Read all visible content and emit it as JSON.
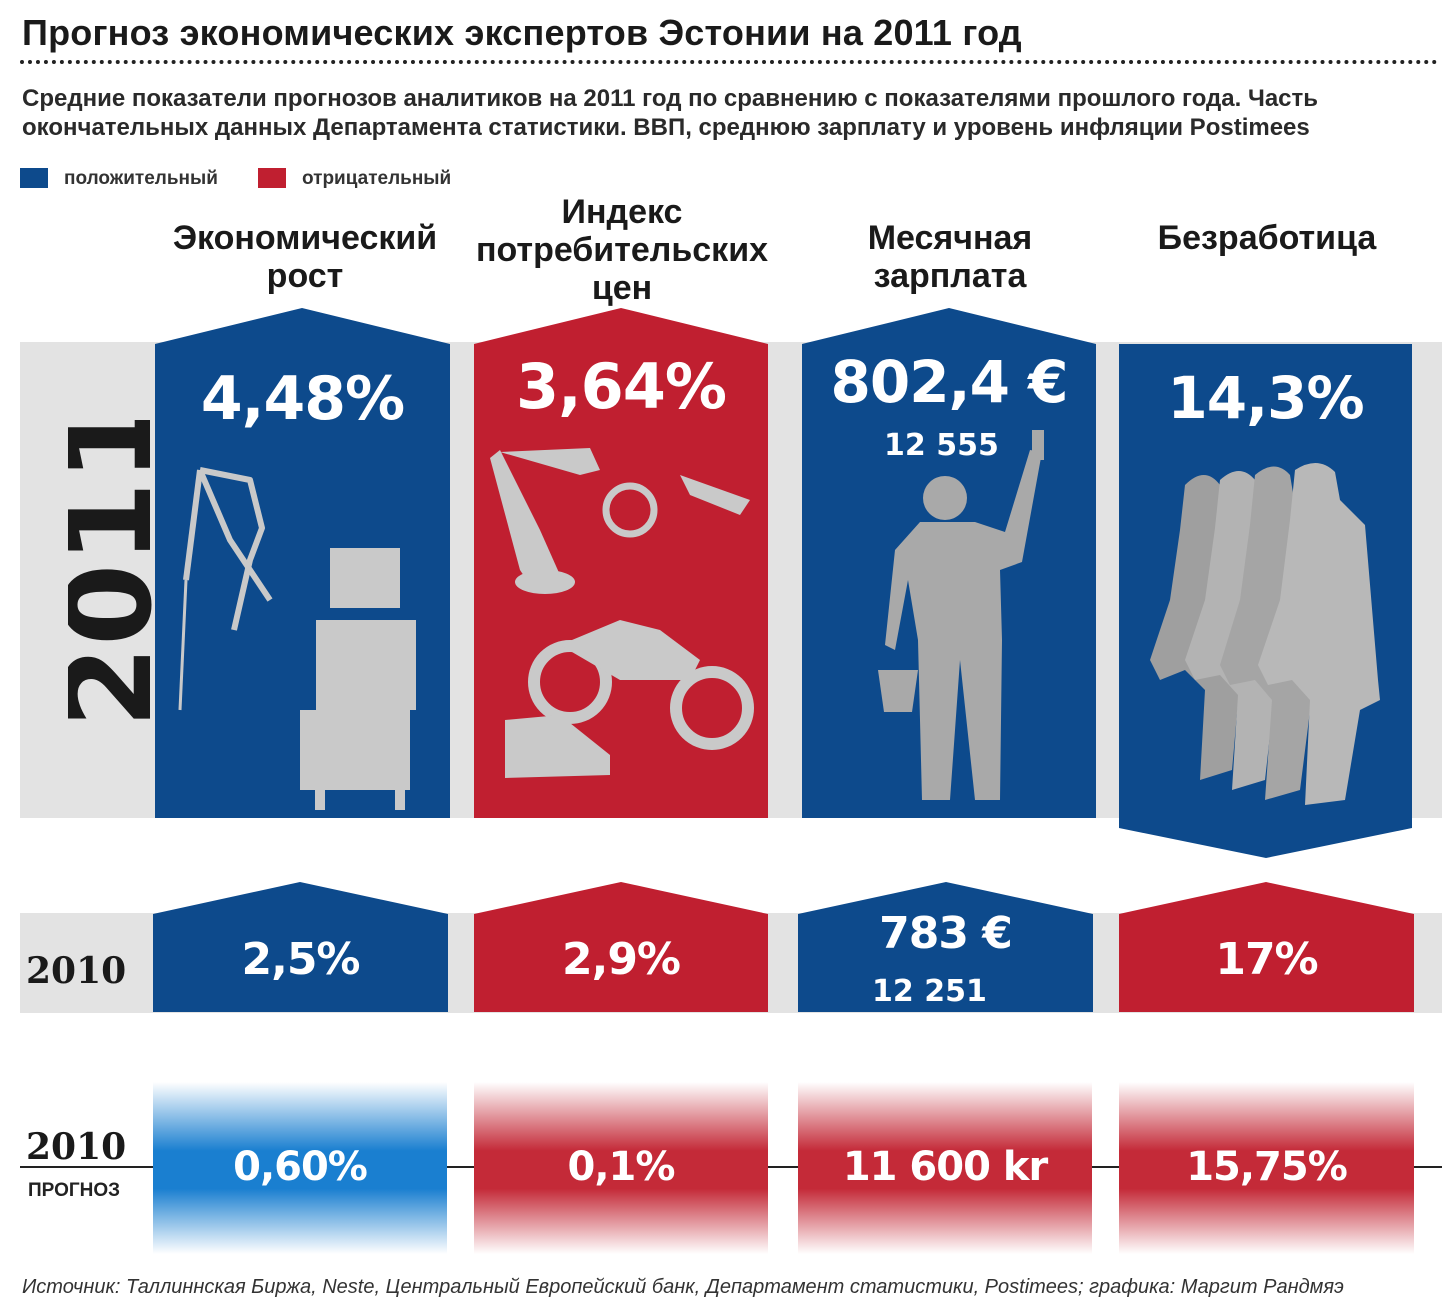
{
  "title": "Прогноз экономических экспертов Эстонии на 2011 год",
  "subtitle_line1": "Средние показатели прогнозов аналитиков на 2011 год по сравнению с показателями прошлого года. Часть",
  "subtitle_line2": "окончательных данных Департамента статистики. ВВП, среднюю зарплату и уровень инфляции Postimees",
  "legend": {
    "positive": {
      "label": "положительный",
      "color": "#0d4a8c"
    },
    "negative": {
      "label": "отрицательный",
      "color": "#c01f30"
    }
  },
  "colors": {
    "band": "#e3e3e3",
    "silhouette": "#a9a9a9",
    "forecast_blue": "#1a7fd0",
    "forecast_red": "#c42a38"
  },
  "columns": [
    {
      "line1": "Экономический",
      "line2": "рост",
      "line3": ""
    },
    {
      "line1": "Индекс",
      "line2": "потребительских",
      "line3": "цен"
    },
    {
      "line1": "Месячная",
      "line2": "зарплата",
      "line3": ""
    },
    {
      "line1": "Безработица",
      "line2": "",
      "line3": ""
    }
  ],
  "rows": {
    "y2011": {
      "label": "2011",
      "cells": [
        {
          "value": "4,48%",
          "sub": "",
          "polarity": "positive",
          "icon": "crane-icon"
        },
        {
          "value": "3,64%",
          "sub": "",
          "polarity": "negative",
          "icon": "consumer-goods-icon"
        },
        {
          "value": "802,4 €",
          "sub": "12 555",
          "polarity": "positive",
          "icon": "painter-worker-icon"
        },
        {
          "value": "14,3%",
          "sub": "",
          "polarity": "positive",
          "icon": "unemployed-people-icon"
        }
      ]
    },
    "y2010": {
      "label": "2010",
      "cells": [
        {
          "value": "2,5%",
          "sub": "",
          "polarity": "positive"
        },
        {
          "value": "2,9%",
          "sub": "",
          "polarity": "negative"
        },
        {
          "value": "783 €",
          "sub": "12 251",
          "polarity": "positive"
        },
        {
          "value": "17%",
          "sub": "",
          "polarity": "negative"
        }
      ]
    },
    "forecast2010": {
      "label": "2010",
      "sublabel": "ПРОГНОЗ",
      "cells": [
        {
          "value": "0,60%",
          "polarity": "positive"
        },
        {
          "value": "0,1%",
          "polarity": "negative"
        },
        {
          "value": "11 600 kr",
          "polarity": "negative"
        },
        {
          "value": "15,75%",
          "polarity": "negative"
        }
      ]
    }
  },
  "source": "Источник: Таллиннская Биржа, Neste, Центральный Европейский банк, Департамент статистики, Postimees; графика: Маргит Рандмяэ",
  "chart_data": {
    "type": "table",
    "title": "Прогноз экономических экспертов Эстонии на 2011 год",
    "categories": [
      "Экономический рост",
      "Индекс потребительских цен",
      "Месячная зарплата",
      "Безработица"
    ],
    "series": [
      {
        "name": "2011",
        "values": [
          4.48,
          3.64,
          802.4,
          14.3
        ],
        "display": [
          "4,48%",
          "3,64%",
          "802,4 €",
          "14,3%"
        ]
      },
      {
        "name": "2010",
        "values": [
          2.5,
          2.9,
          783,
          17
        ],
        "display": [
          "2,5%",
          "2,9%",
          "783 €",
          "17%"
        ]
      },
      {
        "name": "2010 ПРОГНОЗ",
        "values": [
          0.6,
          0.1,
          11600,
          15.75
        ],
        "display": [
          "0,60%",
          "0,1%",
          "11 600 kr",
          "15,75%"
        ]
      }
    ],
    "secondary_values": {
      "2011": "12 555",
      "2010": "12 251"
    }
  }
}
